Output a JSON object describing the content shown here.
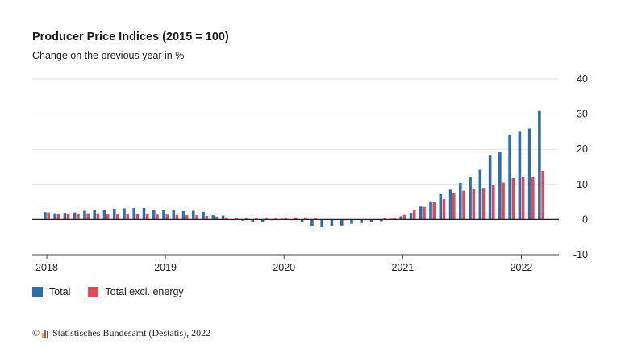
{
  "chart_data": {
    "type": "bar",
    "title": "Producer Price Indices (2015 = 100)",
    "subtitle": "Change on the previous year in %",
    "ylim": [
      -10,
      40
    ],
    "yticks": [
      "40",
      "30",
      "20",
      "10",
      "0",
      "-10"
    ],
    "xticks": [
      "2018",
      "2019",
      "2020",
      "2021",
      "2022"
    ],
    "grid": true,
    "legend": "bottom-left",
    "categories": [
      "2018-01",
      "2018-02",
      "2018-03",
      "2018-04",
      "2018-05",
      "2018-06",
      "2018-07",
      "2018-08",
      "2018-09",
      "2018-10",
      "2018-11",
      "2018-12",
      "2019-01",
      "2019-02",
      "2019-03",
      "2019-04",
      "2019-05",
      "2019-06",
      "2019-07",
      "2019-08",
      "2019-09",
      "2019-10",
      "2019-11",
      "2019-12",
      "2020-01",
      "2020-02",
      "2020-03",
      "2020-04",
      "2020-05",
      "2020-06",
      "2020-07",
      "2020-08",
      "2020-09",
      "2020-10",
      "2020-11",
      "2020-12",
      "2021-01",
      "2021-02",
      "2021-03",
      "2021-04",
      "2021-05",
      "2021-06",
      "2021-07",
      "2021-08",
      "2021-09",
      "2021-10",
      "2021-11",
      "2021-12",
      "2022-01",
      "2022-02",
      "2022-03"
    ],
    "series": [
      {
        "name": "Total",
        "color": "#2f6ea8",
        "values": [
          2.1,
          1.8,
          1.9,
          2.0,
          2.5,
          2.8,
          2.8,
          3.1,
          3.2,
          3.3,
          3.3,
          2.7,
          2.6,
          2.6,
          2.4,
          2.5,
          2.2,
          1.2,
          1.1,
          -0.1,
          -0.3,
          -0.6,
          -0.7,
          -0.2,
          0.2,
          -0.1,
          -0.8,
          -1.9,
          -2.2,
          -1.8,
          -1.7,
          -1.2,
          -1.0,
          -0.7,
          -0.5,
          0.2,
          0.9,
          1.9,
          3.7,
          5.2,
          7.2,
          8.5,
          10.4,
          12.0,
          14.2,
          18.4,
          19.2,
          24.2,
          25.0,
          25.9,
          30.9
        ]
      },
      {
        "name": "Total excl. energy",
        "color": "#e0495a",
        "values": [
          2.0,
          1.6,
          1.6,
          1.7,
          1.8,
          1.8,
          1.7,
          1.6,
          1.6,
          1.6,
          1.5,
          1.4,
          1.4,
          1.3,
          1.2,
          1.2,
          1.0,
          0.8,
          0.6,
          0.4,
          0.3,
          0.3,
          0.3,
          0.4,
          0.5,
          0.6,
          0.6,
          0.4,
          0.1,
          -0.1,
          -0.2,
          -0.1,
          0.0,
          0.1,
          0.3,
          0.5,
          1.3,
          2.6,
          3.6,
          4.9,
          5.8,
          7.5,
          8.2,
          8.7,
          9.0,
          9.9,
          10.5,
          11.8,
          12.2,
          12.2,
          13.9
        ]
      }
    ]
  },
  "source": {
    "copyright": "©",
    "text": "Statistisches Bundesamt (Destatis), 2022",
    "logo_colors": [
      "#f2a900",
      "#e0495a",
      "#2f6ea8"
    ]
  }
}
